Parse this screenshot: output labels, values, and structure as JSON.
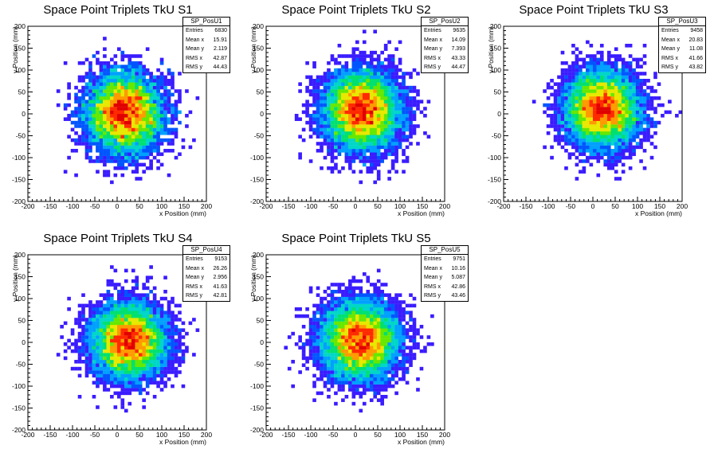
{
  "chart_data": [
    {
      "type": "heatmap",
      "title": "Space Point Triplets TkU S1",
      "xlabel": "x Position (mm)",
      "ylabel": "y Position (mm)",
      "xlim": [
        -200,
        200
      ],
      "ylim": [
        -200,
        200
      ],
      "xticks": [
        -200,
        -150,
        -100,
        -50,
        0,
        50,
        100,
        150,
        200
      ],
      "yticks": [
        -200,
        -150,
        -100,
        -50,
        0,
        50,
        100,
        150,
        200
      ],
      "legend": "top-right",
      "stats": {
        "name": "SP_PosU1",
        "rows": [
          {
            "label": "Entries",
            "value": "6830"
          },
          {
            "label": "Mean x",
            "value": "15.91"
          },
          {
            "label": "Mean y",
            "value": "2.119"
          },
          {
            "label": "RMS x",
            "value": "42.87"
          },
          {
            "label": "RMS y",
            "value": "44.43"
          }
        ]
      },
      "distribution": {
        "mean_x": 15.91,
        "mean_y": 2.119,
        "rms_x": 42.87,
        "rms_y": 44.43,
        "entries": 6830
      }
    },
    {
      "type": "heatmap",
      "title": "Space Point Triplets TkU S2",
      "xlabel": "x Position (mm)",
      "ylabel": "y Position (mm)",
      "xlim": [
        -200,
        200
      ],
      "ylim": [
        -200,
        200
      ],
      "xticks": [
        -200,
        -150,
        -100,
        -50,
        0,
        50,
        100,
        150,
        200
      ],
      "yticks": [
        -200,
        -150,
        -100,
        -50,
        0,
        50,
        100,
        150,
        200
      ],
      "legend": "top-right",
      "stats": {
        "name": "SP_PosU2",
        "rows": [
          {
            "label": "Entries",
            "value": "9635"
          },
          {
            "label": "Mean x",
            "value": "14.09"
          },
          {
            "label": "Mean y",
            "value": "7.393"
          },
          {
            "label": "RMS x",
            "value": "43.33"
          },
          {
            "label": "RMS y",
            "value": "44.47"
          }
        ]
      },
      "distribution": {
        "mean_x": 14.09,
        "mean_y": 7.393,
        "rms_x": 43.33,
        "rms_y": 44.47,
        "entries": 9635
      }
    },
    {
      "type": "heatmap",
      "title": "Space Point Triplets TkU S3",
      "xlabel": "x Position (mm)",
      "ylabel": "y Position (mm)",
      "xlim": [
        -200,
        200
      ],
      "ylim": [
        -200,
        200
      ],
      "xticks": [
        -200,
        -150,
        -100,
        -50,
        0,
        50,
        100,
        150,
        200
      ],
      "yticks": [
        -200,
        -150,
        -100,
        -50,
        0,
        50,
        100,
        150,
        200
      ],
      "legend": "top-right",
      "stats": {
        "name": "SP_PosU3",
        "rows": [
          {
            "label": "Entries",
            "value": "9458"
          },
          {
            "label": "Mean x",
            "value": "20.83"
          },
          {
            "label": "Mean y",
            "value": "11.08"
          },
          {
            "label": "RMS x",
            "value": "41.66"
          },
          {
            "label": "RMS y",
            "value": "43.82"
          }
        ]
      },
      "distribution": {
        "mean_x": 20.83,
        "mean_y": 11.08,
        "rms_x": 41.66,
        "rms_y": 43.82,
        "entries": 9458
      }
    },
    {
      "type": "heatmap",
      "title": "Space Point Triplets TkU S4",
      "xlabel": "x Position (mm)",
      "ylabel": "y Position (mm)",
      "xlim": [
        -200,
        200
      ],
      "ylim": [
        -200,
        200
      ],
      "xticks": [
        -200,
        -150,
        -100,
        -50,
        0,
        50,
        100,
        150,
        200
      ],
      "yticks": [
        -200,
        -150,
        -100,
        -50,
        0,
        50,
        100,
        150,
        200
      ],
      "legend": "top-right",
      "stats": {
        "name": "SP_PosU4",
        "rows": [
          {
            "label": "Entries",
            "value": "9153"
          },
          {
            "label": "Mean x",
            "value": "26.26"
          },
          {
            "label": "Mean y",
            "value": "2.956"
          },
          {
            "label": "RMS x",
            "value": "41.63"
          },
          {
            "label": "RMS y",
            "value": "42.81"
          }
        ]
      },
      "distribution": {
        "mean_x": 26.26,
        "mean_y": 2.956,
        "rms_x": 41.63,
        "rms_y": 42.81,
        "entries": 9153
      }
    },
    {
      "type": "heatmap",
      "title": "Space Point Triplets TkU S5",
      "xlabel": "x Position (mm)",
      "ylabel": "y Position (mm)",
      "xlim": [
        -200,
        200
      ],
      "ylim": [
        -200,
        200
      ],
      "xticks": [
        -200,
        -150,
        -100,
        -50,
        0,
        50,
        100,
        150,
        200
      ],
      "yticks": [
        -200,
        -150,
        -100,
        -50,
        0,
        50,
        100,
        150,
        200
      ],
      "legend": "top-right",
      "stats": {
        "name": "SP_PosU5",
        "rows": [
          {
            "label": "Entries",
            "value": "9751"
          },
          {
            "label": "Mean x",
            "value": "10.16"
          },
          {
            "label": "Mean y",
            "value": "5.087"
          },
          {
            "label": "RMS x",
            "value": "42.86"
          },
          {
            "label": "RMS y",
            "value": "43.46"
          }
        ]
      },
      "distribution": {
        "mean_x": 10.16,
        "mean_y": 5.087,
        "rms_x": 42.86,
        "rms_y": 43.46,
        "entries": 9751
      }
    }
  ],
  "colors": {
    "palette": [
      "#6a00ff",
      "#3a1cff",
      "#0055ff",
      "#00a0ff",
      "#00d6c8",
      "#00e070",
      "#66e800",
      "#e8e800",
      "#ff9a00",
      "#ff2a00",
      "#e00000"
    ],
    "frame": "#000000",
    "background": "#ffffff"
  }
}
